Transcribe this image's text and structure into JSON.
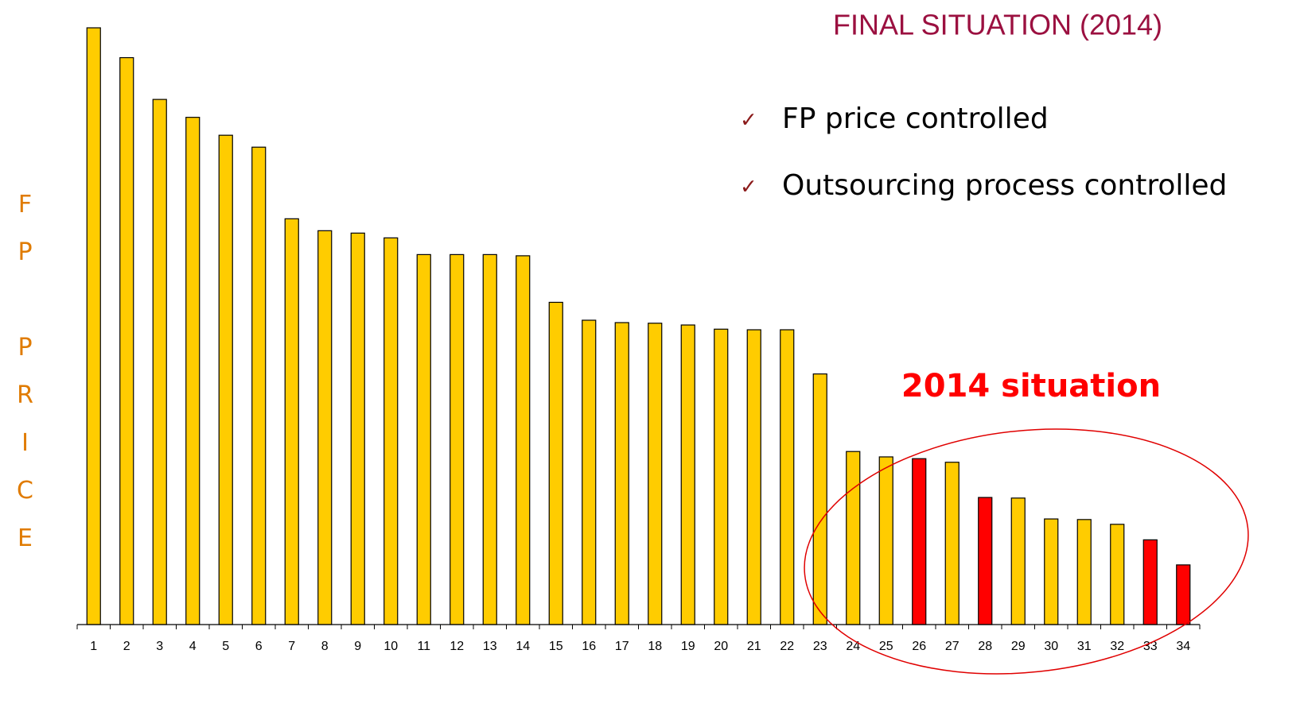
{
  "chart_data": {
    "type": "bar",
    "title": "FINAL SITUATION (2014)",
    "bullets": [
      "FP price controlled",
      "Outsourcing process controlled"
    ],
    "ylabel": "FP PRICE",
    "annotation": "2014 situation",
    "categories": [
      "1",
      "2",
      "3",
      "4",
      "5",
      "6",
      "7",
      "8",
      "9",
      "10",
      "11",
      "12",
      "13",
      "14",
      "15",
      "16",
      "17",
      "18",
      "19",
      "20",
      "21",
      "22",
      "23",
      "24",
      "25",
      "26",
      "27",
      "28",
      "29",
      "30",
      "31",
      "32",
      "33",
      "34"
    ],
    "values": [
      100,
      95,
      88,
      85,
      82,
      80,
      68,
      66,
      65.6,
      64.8,
      62,
      62,
      62,
      61.8,
      54,
      51,
      50.6,
      50.5,
      50.2,
      49.5,
      49.4,
      49.4,
      42,
      29,
      28.1,
      27.8,
      27.2,
      21.3,
      21.2,
      17.7,
      17.6,
      16.8,
      14.2,
      10
    ],
    "colors": [
      "#ffcc00",
      "#ffcc00",
      "#ffcc00",
      "#ffcc00",
      "#ffcc00",
      "#ffcc00",
      "#ffcc00",
      "#ffcc00",
      "#ffcc00",
      "#ffcc00",
      "#ffcc00",
      "#ffcc00",
      "#ffcc00",
      "#ffcc00",
      "#ffcc00",
      "#ffcc00",
      "#ffcc00",
      "#ffcc00",
      "#ffcc00",
      "#ffcc00",
      "#ffcc00",
      "#ffcc00",
      "#ffcc00",
      "#ffcc00",
      "#ffcc00",
      "#ff0000",
      "#ffcc00",
      "#ff0000",
      "#ffcc00",
      "#ffcc00",
      "#ffcc00",
      "#ffcc00",
      "#ff0000",
      "#ff0000"
    ],
    "ylim": [
      0,
      100
    ]
  }
}
